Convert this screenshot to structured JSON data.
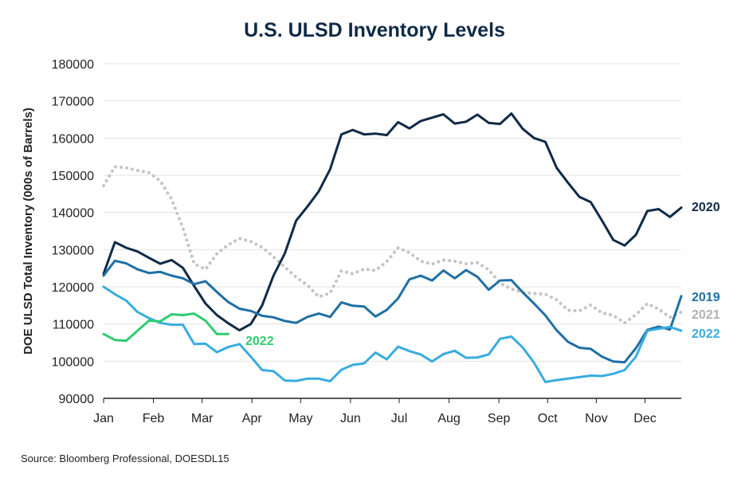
{
  "chart_data": {
    "type": "line",
    "title": "U.S. ULSD Inventory Levels",
    "ylabel": "DOE ULSD Total Inventory (000s of Barrels)",
    "xlabel": "",
    "source": "Source: Bloomberg Professional, DOESDL15",
    "ylim": [
      90000,
      180000
    ],
    "yticks": [
      90000,
      100000,
      110000,
      120000,
      130000,
      140000,
      150000,
      160000,
      170000,
      180000
    ],
    "xlim": [
      1,
      52
    ],
    "x_unit": "week of year",
    "xticks": [
      {
        "label": "Jan",
        "week": 1
      },
      {
        "label": "Feb",
        "week": 5.4
      },
      {
        "label": "Mar",
        "week": 9.7
      },
      {
        "label": "Apr",
        "week": 14.1
      },
      {
        "label": "May",
        "week": 18.4
      },
      {
        "label": "Jun",
        "week": 22.8
      },
      {
        "label": "Jul",
        "week": 27.1
      },
      {
        "label": "Aug",
        "week": 31.5
      },
      {
        "label": "Sep",
        "week": 35.9
      },
      {
        "label": "Oct",
        "week": 40.2
      },
      {
        "label": "Nov",
        "week": 44.5
      },
      {
        "label": "Dec",
        "week": 48.8
      }
    ],
    "grid": true,
    "series": [
      {
        "name": "2020",
        "color": "#0f2a47",
        "dash": false,
        "values": [
          123500,
          132000,
          130500,
          129500,
          127800,
          126200,
          127200,
          125100,
          120200,
          115500,
          112400,
          110200,
          108300,
          110000,
          115000,
          123000,
          129000,
          137800,
          141600,
          145700,
          151600,
          161000,
          162200,
          161000,
          161200,
          160800,
          164300,
          162600,
          164600,
          165500,
          166400,
          163900,
          164400,
          166300,
          164100,
          163800,
          166600,
          162500,
          160000,
          159000,
          152000,
          148000,
          144200,
          142800,
          137800,
          132600,
          131100,
          134000,
          140400,
          140900,
          138800,
          141300
        ]
      },
      {
        "name": "2019",
        "color": "#1f6fa5",
        "dash": false,
        "values": [
          123000,
          127000,
          126300,
          124700,
          123700,
          124000,
          123000,
          122300,
          120700,
          121500,
          118600,
          115900,
          114100,
          113500,
          112200,
          111800,
          110800,
          110300,
          111900,
          112800,
          111900,
          115800,
          114900,
          114700,
          112000,
          113800,
          116900,
          122000,
          123000,
          121700,
          124400,
          122300,
          124500,
          122700,
          119200,
          121700,
          121800,
          118500,
          115500,
          112300,
          108300,
          105200,
          103600,
          103300,
          101200,
          99900,
          99700,
          103500,
          108400,
          109300,
          108500,
          117500
        ]
      },
      {
        "name": "2021",
        "color": "#c4c4c4",
        "dash": true,
        "values": [
          147200,
          152300,
          152000,
          151300,
          150700,
          148500,
          143600,
          135900,
          126200,
          124700,
          128900,
          131300,
          133000,
          132200,
          130600,
          128100,
          125300,
          122600,
          120400,
          117300,
          118300,
          124300,
          123500,
          124800,
          124400,
          126800,
          130500,
          129200,
          126900,
          126100,
          127200,
          126900,
          126200,
          126500,
          124600,
          121000,
          119400,
          118500,
          118200,
          118000,
          116500,
          113700,
          113500,
          115100,
          113000,
          112300,
          110300,
          112500,
          115500,
          114000,
          111800,
          113200
        ]
      },
      {
        "name": "2022",
        "color": "#39ace0",
        "dash": false,
        "values": [
          120000,
          118000,
          116300,
          113200,
          111600,
          110300,
          109800,
          109800,
          104600,
          104700,
          102400,
          103800,
          104600,
          101200,
          97600,
          97300,
          94800,
          94700,
          95300,
          95300,
          94600,
          97700,
          99000,
          99400,
          102300,
          100500,
          103900,
          102700,
          101800,
          99900,
          101900,
          102800,
          100900,
          101000,
          101800,
          106000,
          106600,
          103700,
          99600,
          94400,
          94900,
          95300,
          95700,
          96100,
          96000,
          96600,
          97600,
          101200,
          108200,
          108700,
          109200,
          108200
        ]
      },
      {
        "name": "2022",
        "color": "#2ecc71",
        "dash": false,
        "values": [
          107300,
          105700,
          105500,
          108200,
          110900,
          110700,
          112600,
          112400,
          112800,
          110900,
          107300,
          107300
        ]
      }
    ],
    "series_labels": [
      {
        "series": 0,
        "text": "2020",
        "color": "#0f2a47"
      },
      {
        "series": 1,
        "text": "2019",
        "color": "#1f6fa5"
      },
      {
        "series": 2,
        "text": "2021",
        "color": "#b0b0b0"
      },
      {
        "series": 3,
        "text": "2022",
        "color": "#39ace0"
      },
      {
        "series": 4,
        "text": "2022",
        "color": "#2ecc71"
      }
    ]
  }
}
